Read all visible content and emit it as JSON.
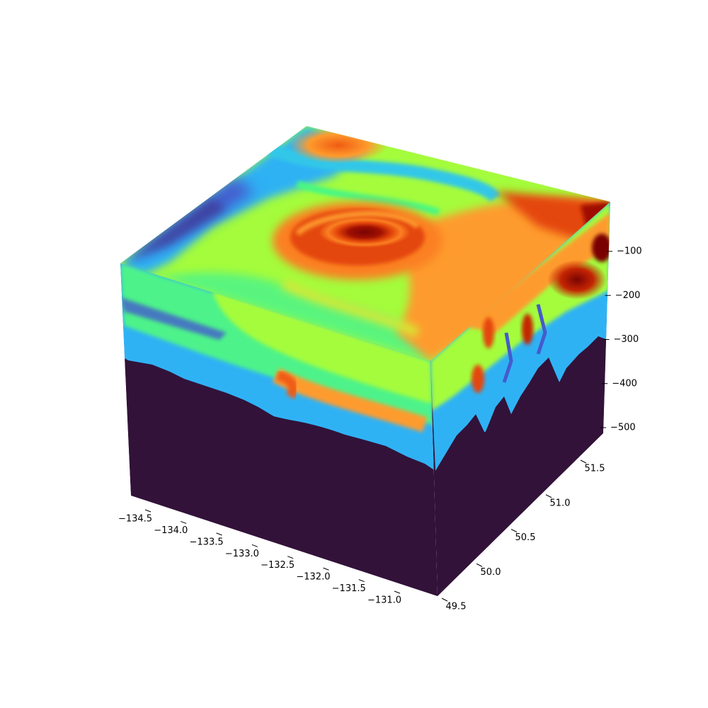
{
  "chart_data": {
    "type": "3d-contour-cube",
    "title": "",
    "colormap": "turbo",
    "background_fill": "#321239",
    "x_axis": {
      "label": "",
      "range": [
        -134.5,
        -131.0
      ],
      "ticks": [
        "−134.5",
        "−134.0",
        "−133.5",
        "−133.0",
        "−132.5",
        "−132.0",
        "−131.5",
        "−131.0"
      ]
    },
    "y_axis": {
      "label": "",
      "range": [
        49.5,
        51.5
      ],
      "ticks": [
        "49.5",
        "50.0",
        "50.5",
        "51.0",
        "51.5"
      ]
    },
    "z_axis": {
      "label": "",
      "range": [
        -500,
        -100
      ],
      "ticks": [
        "−100",
        "−200",
        "−300",
        "−400",
        "−500"
      ]
    },
    "features": {
      "eddy_center": [
        -132.6,
        50.9
      ],
      "max_depth_front": [
        -300,
        -460
      ],
      "grid": false
    }
  }
}
